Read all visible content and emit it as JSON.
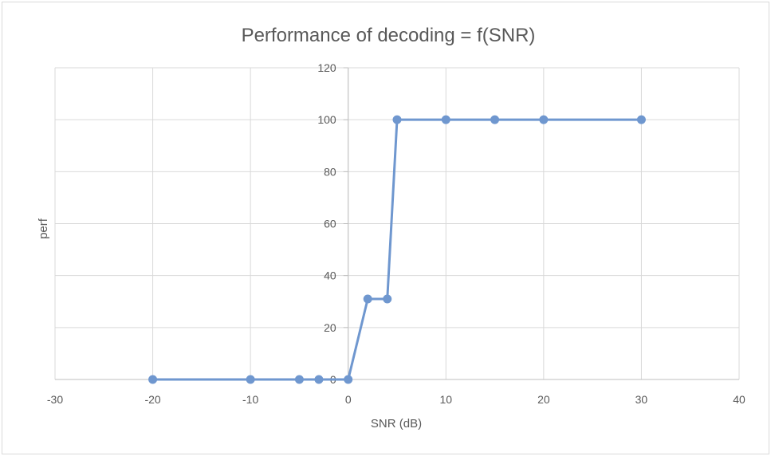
{
  "chart_data": {
    "type": "scatter",
    "title": "Performance of decoding = f(SNR)",
    "xlabel": "SNR (dB)",
    "ylabel": "perf",
    "xlim": [
      -30,
      40
    ],
    "ylim": [
      0,
      120
    ],
    "x_ticks": [
      "-30",
      "-20",
      "-10",
      "0",
      "10",
      "20",
      "30",
      "40"
    ],
    "y_ticks": [
      "0",
      "20",
      "40",
      "60",
      "80",
      "100",
      "120"
    ],
    "grid": true,
    "legend": "none",
    "style": "lines-and-markers",
    "series": [
      {
        "color": "#6f97cf",
        "x": [
          -20,
          -10,
          -5,
          -3,
          0,
          2,
          4,
          5,
          10,
          15,
          20,
          30
        ],
        "y": [
          0,
          0,
          0,
          0,
          0,
          31,
          31,
          100,
          100,
          100,
          100,
          100
        ]
      }
    ]
  },
  "colors": {
    "grid": "#d9d9d9",
    "frame": "#d9d9d9",
    "text": "#595959"
  }
}
